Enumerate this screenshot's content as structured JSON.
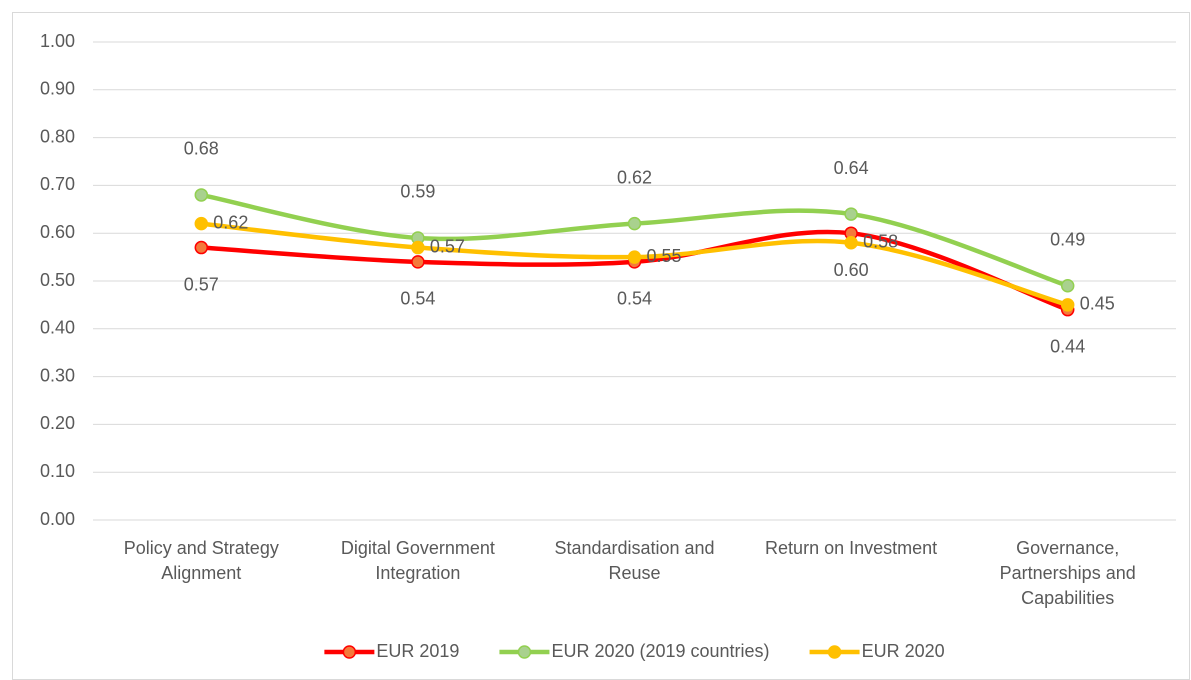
{
  "chart_data": {
    "type": "line",
    "categories": [
      "Policy and Strategy Alignment",
      "Digital Government Integration",
      "Standardisation and Reuse",
      "Return on Investment",
      "Governance, Partnerships and Capabilities"
    ],
    "series": [
      {
        "name": "EUR 2019",
        "color": "#ff0000",
        "values": [
          0.57,
          0.54,
          0.54,
          0.6,
          0.44
        ]
      },
      {
        "name": "EUR 2020 (2019 countries)",
        "color": "#92d050",
        "values": [
          0.68,
          0.59,
          0.62,
          0.64,
          0.49
        ]
      },
      {
        "name": "EUR 2020",
        "color": "#ffc000",
        "values": [
          0.62,
          0.57,
          0.55,
          0.58,
          0.45
        ]
      }
    ],
    "value_labels": [
      [
        "0.57",
        "0.54",
        "0.54",
        "0.60",
        "0.44"
      ],
      [
        "0.68",
        "0.59",
        "0.62",
        "0.64",
        "0.49"
      ],
      [
        "0.62",
        "0.57",
        "0.55",
        "0.58",
        "0.45"
      ]
    ],
    "ylim": [
      0,
      1
    ],
    "yticks": [
      {
        "value": 0,
        "label": "0.00"
      },
      {
        "value": 0.1,
        "label": "0.10"
      },
      {
        "value": 0.2,
        "label": "0.20"
      },
      {
        "value": 0.3,
        "label": "0.30"
      },
      {
        "value": 0.4,
        "label": "0.40"
      },
      {
        "value": 0.5,
        "label": "0.50"
      },
      {
        "value": 0.6,
        "label": "0.60"
      },
      {
        "value": 0.7,
        "label": "0.70"
      },
      {
        "value": 0.8,
        "label": "0.80"
      },
      {
        "value": 0.9,
        "label": "0.90"
      },
      {
        "value": 1,
        "label": "1.00"
      }
    ],
    "grid": true,
    "legend": "bottom"
  }
}
